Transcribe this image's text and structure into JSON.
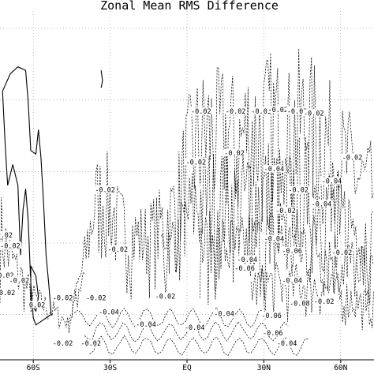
{
  "chart_data": {
    "type": "contour",
    "title": "Zonal Mean RMS Difference",
    "xlabel": "",
    "ylabel": "",
    "x_ticks": [
      {
        "lat": -60,
        "label": "60S"
      },
      {
        "lat": -30,
        "label": "30S"
      },
      {
        "lat": 0,
        "label": "EQ"
      },
      {
        "lat": 30,
        "label": "30N"
      },
      {
        "lat": 60,
        "label": "60N"
      }
    ],
    "xlim": [
      -73,
      73
    ],
    "grid": true,
    "contour_levels": [
      {
        "value": 0.02,
        "label": "0.02",
        "style": "solid"
      },
      {
        "value": -0.02,
        "label": "-0.02",
        "style": "dashed"
      },
      {
        "value": -0.04,
        "label": "-0.04",
        "style": "dashed"
      },
      {
        "value": -0.06,
        "label": "-0.06",
        "style": "dashed"
      },
      {
        "value": -0.08,
        "label": "-0.08",
        "style": "dashed"
      }
    ],
    "contour_labels": [
      {
        "text": "-0.02",
        "lat": 5.5,
        "level": 0.71
      },
      {
        "text": "-0.02",
        "lat": 19,
        "level": 0.71
      },
      {
        "text": "-0.02",
        "lat": 29,
        "level": 0.71
      },
      {
        "text": "-0.02",
        "lat": 35.5,
        "level": 0.715
      },
      {
        "text": "-0.02",
        "lat": 43,
        "level": 0.71
      },
      {
        "text": "-0.02",
        "lat": 49.5,
        "level": 0.705
      },
      {
        "text": "-0.02",
        "lat": 18.5,
        "level": 0.59
      },
      {
        "text": "-0.02",
        "lat": 64.5,
        "level": 0.578
      },
      {
        "text": "-0.02",
        "lat": 3.5,
        "level": 0.565
      },
      {
        "text": "-0.04",
        "lat": 34,
        "level": 0.545
      },
      {
        "text": "-0.04",
        "lat": 56.5,
        "level": 0.51
      },
      {
        "text": "-0.02",
        "lat": -32,
        "level": 0.485
      },
      {
        "text": "-0.02",
        "lat": 43.5,
        "level": 0.485
      },
      {
        "text": "-0.04",
        "lat": 52.5,
        "level": 0.445
      },
      {
        "text": "-0.02",
        "lat": 38.5,
        "level": 0.425
      },
      {
        "text": "-0.02",
        "lat": -72,
        "level": 0.355
      },
      {
        "text": "-0.04",
        "lat": 34,
        "level": 0.345
      },
      {
        "text": "-0.02",
        "lat": -69,
        "level": 0.325
      },
      {
        "text": "-0.02",
        "lat": -27,
        "level": 0.315
      },
      {
        "text": "-0.06",
        "lat": 41,
        "level": 0.31
      },
      {
        "text": "-0.02",
        "lat": 60.5,
        "level": 0.305
      },
      {
        "text": "-0.04",
        "lat": 23.5,
        "level": 0.285
      },
      {
        "text": "-0.06",
        "lat": 22.5,
        "level": 0.26
      },
      {
        "text": "-0.02",
        "lat": -71.5,
        "level": 0.24
      },
      {
        "text": "-0.02",
        "lat": -65.5,
        "level": 0.225
      },
      {
        "text": "-0.04",
        "lat": 41,
        "level": 0.225
      },
      {
        "text": "-0.02",
        "lat": -71,
        "level": 0.19
      },
      {
        "text": "-0.02",
        "lat": -8.5,
        "level": 0.18
      },
      {
        "text": "-0.02",
        "lat": -48.5,
        "level": 0.175
      },
      {
        "text": "-0.02",
        "lat": -35.5,
        "level": 0.175
      },
      {
        "text": "-0.02",
        "lat": 53.5,
        "level": 0.165
      },
      {
        "text": "-0.08",
        "lat": 44,
        "level": 0.16
      },
      {
        "text": "0.02",
        "lat": -58.5,
        "level": 0.155
      },
      {
        "text": "-0.04",
        "lat": -30.5,
        "level": 0.135
      },
      {
        "text": "-0.04",
        "lat": 14.5,
        "level": 0.13
      },
      {
        "text": "-0.06",
        "lat": 33,
        "level": 0.125
      },
      {
        "text": "-0.04",
        "lat": -16,
        "level": 0.1
      },
      {
        "text": "-0.04",
        "lat": 3,
        "level": 0.09
      },
      {
        "text": "-0.06",
        "lat": 33.5,
        "level": 0.075
      },
      {
        "text": "-0.02",
        "lat": -37.5,
        "level": 0.045
      },
      {
        "text": "-0.02",
        "lat": -48.5,
        "level": 0.045
      },
      {
        "text": "-0.04",
        "lat": 39,
        "level": 0.045
      }
    ]
  }
}
